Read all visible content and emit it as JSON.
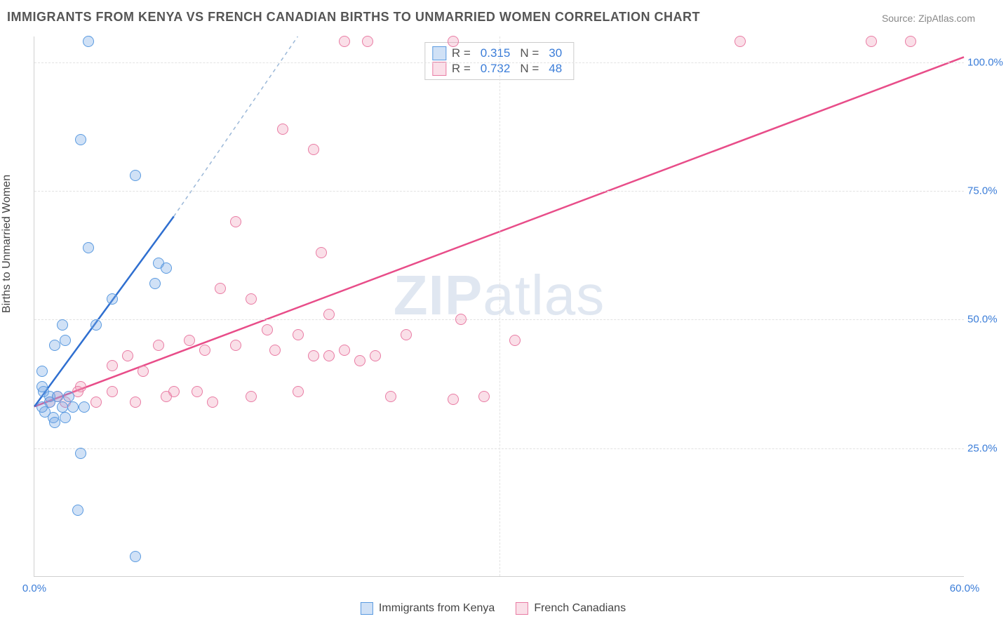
{
  "title": "IMMIGRANTS FROM KENYA VS FRENCH CANADIAN BIRTHS TO UNMARRIED WOMEN CORRELATION CHART",
  "source": "Source: ZipAtlas.com",
  "ylabel": "Births to Unmarried Women",
  "watermark_zip": "ZIP",
  "watermark_atlas": "atlas",
  "chart": {
    "type": "scatter",
    "xlim": [
      0,
      60
    ],
    "ylim": [
      0,
      105
    ],
    "xticks": [
      0,
      60
    ],
    "xtick_labels": [
      "0.0%",
      "60.0%"
    ],
    "yticks": [
      25,
      50,
      75,
      100
    ],
    "ytick_labels": [
      "25.0%",
      "50.0%",
      "75.0%",
      "100.0%"
    ],
    "grid_color": "#e2e2e2",
    "background_color": "#ffffff",
    "axis_color": "#d0d0d0"
  },
  "series": {
    "blue": {
      "label": "Immigrants from Kenya",
      "R": "0.315",
      "N": "30",
      "fill": "rgba(120,170,230,0.35)",
      "stroke": "#5a9ae0",
      "trend_color": "#2f6fd0",
      "trend_dash_color": "#9bb8d8",
      "trend": {
        "x1": 0,
        "y1": 33,
        "x2_solid": 9,
        "y2_solid": 70,
        "x2_dash": 17,
        "y2_dash": 105
      },
      "points": [
        [
          3.5,
          104
        ],
        [
          3.0,
          85
        ],
        [
          6.5,
          78
        ],
        [
          3.5,
          64
        ],
        [
          5.0,
          54
        ],
        [
          8.0,
          61
        ],
        [
          8.5,
          60
        ],
        [
          1.8,
          49
        ],
        [
          4.0,
          49
        ],
        [
          2.0,
          46
        ],
        [
          1.3,
          45
        ],
        [
          0.5,
          40
        ],
        [
          0.6,
          36
        ],
        [
          1.0,
          35
        ],
        [
          1.5,
          35
        ],
        [
          2.2,
          35
        ],
        [
          1.0,
          34
        ],
        [
          1.8,
          33
        ],
        [
          2.5,
          33
        ],
        [
          3.2,
          33
        ],
        [
          0.7,
          32
        ],
        [
          1.2,
          31
        ],
        [
          2.0,
          31
        ],
        [
          1.3,
          30
        ],
        [
          0.5,
          33
        ],
        [
          3.0,
          24
        ],
        [
          2.8,
          13
        ],
        [
          6.5,
          4
        ],
        [
          7.8,
          57
        ],
        [
          0.5,
          37
        ]
      ]
    },
    "pink": {
      "label": "French Canadians",
      "R": "0.732",
      "N": "48",
      "fill": "rgba(240,150,180,0.30)",
      "stroke": "#e97ca4",
      "trend_color": "#e84d89",
      "trend": {
        "x1": 0,
        "y1": 33,
        "x2": 60,
        "y2": 101
      },
      "points": [
        [
          20,
          104
        ],
        [
          21.5,
          104
        ],
        [
          27,
          104
        ],
        [
          45.5,
          104
        ],
        [
          54,
          104
        ],
        [
          56.5,
          104
        ],
        [
          16,
          87
        ],
        [
          18,
          83
        ],
        [
          13,
          69
        ],
        [
          18.5,
          63
        ],
        [
          12,
          56
        ],
        [
          14,
          54
        ],
        [
          19,
          51
        ],
        [
          24,
          47
        ],
        [
          27.5,
          50
        ],
        [
          31,
          46
        ],
        [
          15,
          48
        ],
        [
          17,
          47
        ],
        [
          10,
          46
        ],
        [
          8,
          45
        ],
        [
          6,
          43
        ],
        [
          5,
          41
        ],
        [
          7,
          40
        ],
        [
          11,
          44
        ],
        [
          13,
          45
        ],
        [
          15.5,
          44
        ],
        [
          18,
          43
        ],
        [
          20,
          44
        ],
        [
          22,
          43
        ],
        [
          9,
          36
        ],
        [
          10.5,
          36
        ],
        [
          11.5,
          34
        ],
        [
          14,
          35
        ],
        [
          17,
          36
        ],
        [
          19,
          43
        ],
        [
          21,
          42
        ],
        [
          23,
          35
        ],
        [
          27,
          34.5
        ],
        [
          29,
          35
        ],
        [
          5,
          36
        ],
        [
          3,
          37
        ],
        [
          1.5,
          35
        ],
        [
          1.0,
          34
        ],
        [
          2.0,
          34
        ],
        [
          2.8,
          36
        ],
        [
          4,
          34
        ],
        [
          6.5,
          34
        ],
        [
          8.5,
          35
        ]
      ]
    }
  },
  "legend_top_labels": {
    "R": "R  =",
    "N": "N  ="
  },
  "text_colors": {
    "title": "#555555",
    "source": "#888888",
    "values": "#3b7dd8"
  }
}
